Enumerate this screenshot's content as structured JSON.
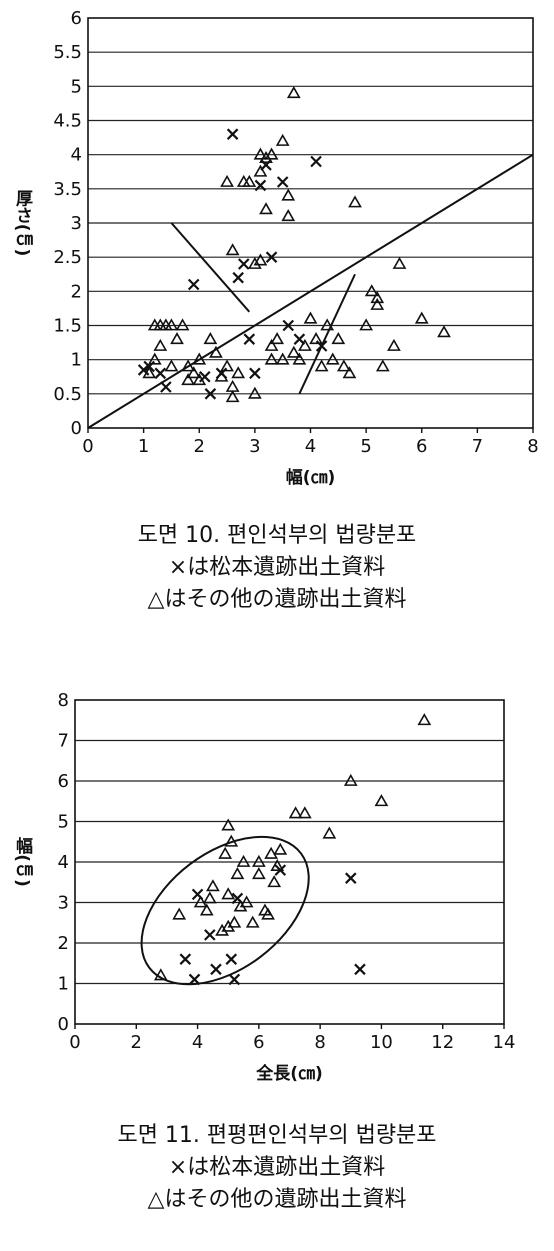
{
  "chart_data": [
    {
      "type": "scatter",
      "title": "도면 10. 편인석부의 법량분포",
      "legend_cross": "×は松本遺跡出土資料",
      "legend_triangle": "△はその他の遺跡出土資料",
      "xlabel": "幅(㎝)",
      "ylabel": "厚さ(㎝)",
      "xlim": [
        0,
        8
      ],
      "ylim": [
        0,
        6
      ],
      "x_ticks": [
        "0",
        "1",
        "2",
        "3",
        "4",
        "5",
        "6",
        "7",
        "8"
      ],
      "y_ticks": [
        "0",
        "0.5",
        "1",
        "1.5",
        "2",
        "2.5",
        "3",
        "3.5",
        "4",
        "4.5",
        "5",
        "5.5",
        "6"
      ],
      "grid": "horizontal",
      "series": [
        {
          "marker": "cross",
          "points": [
            [
              1.0,
              0.85
            ],
            [
              1.1,
              0.9
            ],
            [
              1.3,
              0.8
            ],
            [
              1.4,
              0.6
            ],
            [
              1.9,
              2.1
            ],
            [
              2.1,
              0.75
            ],
            [
              2.2,
              0.5
            ],
            [
              2.4,
              0.8
            ],
            [
              2.6,
              4.3
            ],
            [
              2.7,
              2.2
            ],
            [
              2.8,
              2.4
            ],
            [
              2.9,
              1.3
            ],
            [
              3.0,
              0.8
            ],
            [
              3.1,
              3.55
            ],
            [
              3.2,
              3.85
            ],
            [
              3.3,
              2.5
            ],
            [
              3.5,
              3.6
            ],
            [
              3.6,
              1.5
            ],
            [
              3.8,
              1.3
            ],
            [
              4.1,
              3.9
            ],
            [
              4.2,
              1.2
            ]
          ]
        },
        {
          "marker": "triangle",
          "points": [
            [
              1.1,
              0.8
            ],
            [
              1.2,
              1.0
            ],
            [
              1.2,
              1.5
            ],
            [
              1.3,
              1.2
            ],
            [
              1.3,
              1.5
            ],
            [
              1.4,
              1.5
            ],
            [
              1.5,
              0.9
            ],
            [
              1.5,
              1.5
            ],
            [
              1.6,
              1.3
            ],
            [
              1.7,
              1.5
            ],
            [
              1.8,
              0.9
            ],
            [
              1.8,
              0.7
            ],
            [
              1.9,
              0.8
            ],
            [
              2.0,
              1.0
            ],
            [
              2.0,
              0.7
            ],
            [
              2.2,
              1.3
            ],
            [
              2.3,
              1.1
            ],
            [
              2.4,
              0.75
            ],
            [
              2.5,
              3.6
            ],
            [
              2.5,
              0.9
            ],
            [
              2.6,
              0.6
            ],
            [
              2.6,
              0.45
            ],
            [
              2.6,
              2.6
            ],
            [
              2.7,
              0.8
            ],
            [
              2.8,
              3.6
            ],
            [
              2.9,
              3.6
            ],
            [
              3.0,
              2.4
            ],
            [
              3.0,
              0.5
            ],
            [
              3.1,
              4.0
            ],
            [
              3.1,
              3.75
            ],
            [
              3.1,
              2.45
            ],
            [
              3.2,
              3.2
            ],
            [
              3.2,
              3.95
            ],
            [
              3.3,
              4.0
            ],
            [
              3.3,
              1.0
            ],
            [
              3.3,
              1.2
            ],
            [
              3.4,
              1.3
            ],
            [
              3.5,
              4.2
            ],
            [
              3.5,
              1.0
            ],
            [
              3.6,
              3.1
            ],
            [
              3.6,
              3.4
            ],
            [
              3.7,
              1.1
            ],
            [
              3.7,
              4.9
            ],
            [
              3.8,
              1.0
            ],
            [
              3.9,
              1.2
            ],
            [
              4.0,
              1.6
            ],
            [
              4.1,
              1.3
            ],
            [
              4.2,
              0.9
            ],
            [
              4.3,
              1.5
            ],
            [
              4.4,
              1.0
            ],
            [
              4.5,
              1.3
            ],
            [
              4.6,
              0.9
            ],
            [
              4.7,
              0.8
            ],
            [
              4.8,
              3.3
            ],
            [
              5.0,
              1.5
            ],
            [
              5.1,
              2.0
            ],
            [
              5.2,
              1.8
            ],
            [
              5.2,
              1.9
            ],
            [
              5.3,
              0.9
            ],
            [
              5.5,
              1.2
            ],
            [
              5.6,
              2.4
            ],
            [
              6.0,
              1.6
            ],
            [
              6.4,
              1.4
            ]
          ]
        }
      ],
      "lines": [
        {
          "from": [
            0.0,
            0.0
          ],
          "to": [
            8.0,
            4.0
          ]
        },
        {
          "from": [
            1.5,
            3.0
          ],
          "to": [
            2.9,
            1.7
          ]
        },
        {
          "from": [
            3.8,
            0.5
          ],
          "to": [
            4.8,
            2.25
          ]
        }
      ]
    },
    {
      "type": "scatter",
      "title": "도면 11. 편평편인석부의 법량분포",
      "legend_cross": "×は松本遺跡出土資料",
      "legend_triangle": "△はその他の遺跡出土資料",
      "xlabel": "全長(㎝)",
      "ylabel": "幅(㎝)",
      "xlim": [
        0,
        14
      ],
      "ylim": [
        0,
        8
      ],
      "x_ticks": [
        "0",
        "2",
        "4",
        "6",
        "8",
        "10",
        "12",
        "14"
      ],
      "y_ticks": [
        "0",
        "1",
        "2",
        "3",
        "4",
        "5",
        "6",
        "7",
        "8"
      ],
      "grid": "horizontal",
      "series": [
        {
          "marker": "cross",
          "points": [
            [
              3.6,
              1.6
            ],
            [
              3.9,
              1.1
            ],
            [
              4.0,
              3.2
            ],
            [
              4.4,
              2.2
            ],
            [
              4.6,
              1.35
            ],
            [
              5.1,
              1.6
            ],
            [
              5.2,
              1.1
            ],
            [
              5.3,
              3.1
            ],
            [
              6.7,
              3.8
            ],
            [
              9.0,
              3.6
            ],
            [
              9.3,
              1.35
            ]
          ]
        },
        {
          "marker": "triangle",
          "points": [
            [
              2.8,
              1.2
            ],
            [
              3.4,
              2.7
            ],
            [
              4.1,
              3.0
            ],
            [
              4.3,
              2.8
            ],
            [
              4.4,
              3.1
            ],
            [
              4.5,
              3.4
            ],
            [
              4.8,
              2.3
            ],
            [
              4.9,
              4.2
            ],
            [
              5.0,
              4.9
            ],
            [
              5.0,
              3.2
            ],
            [
              5.0,
              2.4
            ],
            [
              5.1,
              4.5
            ],
            [
              5.2,
              2.5
            ],
            [
              5.3,
              3.7
            ],
            [
              5.4,
              2.9
            ],
            [
              5.5,
              4.0
            ],
            [
              5.6,
              3.0
            ],
            [
              5.8,
              2.5
            ],
            [
              6.0,
              3.7
            ],
            [
              6.0,
              4.0
            ],
            [
              6.2,
              2.8
            ],
            [
              6.3,
              2.7
            ],
            [
              6.4,
              4.2
            ],
            [
              6.5,
              3.5
            ],
            [
              6.6,
              3.9
            ],
            [
              6.7,
              4.3
            ],
            [
              7.2,
              5.2
            ],
            [
              7.5,
              5.2
            ],
            [
              8.3,
              4.7
            ],
            [
              9.0,
              6.0
            ],
            [
              10.0,
              5.5
            ],
            [
              11.4,
              7.5
            ]
          ]
        }
      ],
      "ellipse": {
        "cx": 4.9,
        "cy": 2.8,
        "rx": 3.1,
        "ry": 1.25,
        "angle_deg": -37
      }
    }
  ]
}
